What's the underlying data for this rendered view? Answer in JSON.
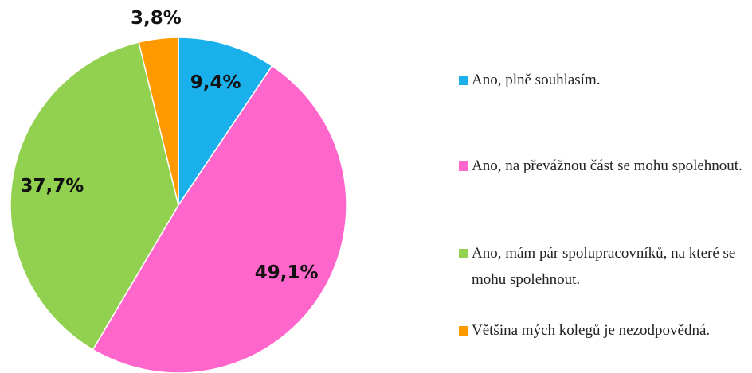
{
  "chart_data": {
    "type": "pie",
    "categories": [
      "Ano, plně souhlasím.",
      "Ano, na převážnou část se mohu spolehnout.",
      "Ano, mám pár spolupracovníků, na které se mohu spolehnout.",
      "Většina mých kolegů je nezodpovědná."
    ],
    "values": [
      9.4,
      49.1,
      37.7,
      3.8
    ],
    "value_labels": [
      "9,4%",
      "49,1%",
      "37,7%",
      "3,8%"
    ],
    "colors": [
      "#1ab0ec",
      "#ff66cc",
      "#92d050",
      "#ff9900"
    ],
    "legend": "right"
  }
}
